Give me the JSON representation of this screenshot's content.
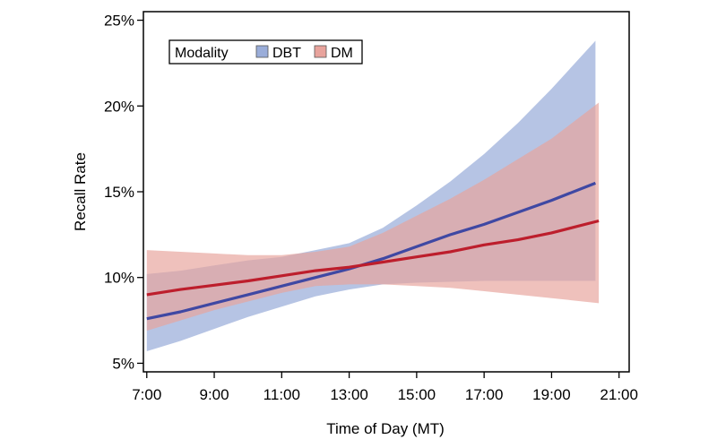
{
  "chart_data": {
    "type": "line",
    "title": "",
    "xlabel": "Time of Day (MT)",
    "ylabel": "Recall Rate",
    "xlim": [
      6.9,
      21.3
    ],
    "ylim": [
      4.5,
      25.5
    ],
    "x_ticks": [
      7,
      9,
      11,
      13,
      15,
      17,
      19,
      21
    ],
    "x_tick_labels": [
      "7:00",
      "9:00",
      "11:00",
      "13:00",
      "15:00",
      "17:00",
      "19:00",
      "21:00"
    ],
    "y_ticks": [
      5,
      10,
      15,
      20,
      25
    ],
    "y_tick_labels": [
      "5%",
      "10%",
      "15%",
      "20%",
      "25%"
    ],
    "legend": {
      "title": "Modality",
      "position": "top-left"
    },
    "series": [
      {
        "name": "DBT",
        "color": "#3f48a3",
        "band_color": "#9aadd9",
        "x": [
          7,
          8,
          9,
          10,
          11,
          12,
          13,
          14,
          15,
          16,
          17,
          18,
          19,
          20.3
        ],
        "values": [
          7.6,
          8.0,
          8.5,
          9.0,
          9.5,
          10.0,
          10.5,
          11.1,
          11.8,
          12.5,
          13.1,
          13.8,
          14.5,
          15.5
        ],
        "lower": [
          5.7,
          6.3,
          7.0,
          7.7,
          8.3,
          8.9,
          9.3,
          9.6,
          9.7,
          9.75,
          9.8,
          9.8,
          9.8,
          9.8
        ],
        "upper": [
          10.2,
          10.4,
          10.7,
          11.0,
          11.2,
          11.6,
          12.0,
          12.9,
          14.2,
          15.6,
          17.2,
          19.0,
          21.0,
          23.8
        ]
      },
      {
        "name": "DM",
        "color": "#bd1e2c",
        "band_color": "#e8a39c",
        "x": [
          7,
          8,
          9,
          10,
          11,
          12,
          13,
          14,
          15,
          16,
          17,
          18,
          19,
          20.4
        ],
        "values": [
          9.0,
          9.3,
          9.55,
          9.8,
          10.1,
          10.4,
          10.6,
          10.9,
          11.2,
          11.5,
          11.9,
          12.2,
          12.6,
          13.3
        ],
        "lower": [
          6.9,
          7.5,
          8.1,
          8.6,
          9.1,
          9.5,
          9.6,
          9.6,
          9.5,
          9.4,
          9.2,
          9.0,
          8.8,
          8.5
        ],
        "upper": [
          11.6,
          11.5,
          11.4,
          11.3,
          11.3,
          11.5,
          11.8,
          12.6,
          13.6,
          14.6,
          15.7,
          16.9,
          18.1,
          20.2
        ]
      }
    ]
  }
}
